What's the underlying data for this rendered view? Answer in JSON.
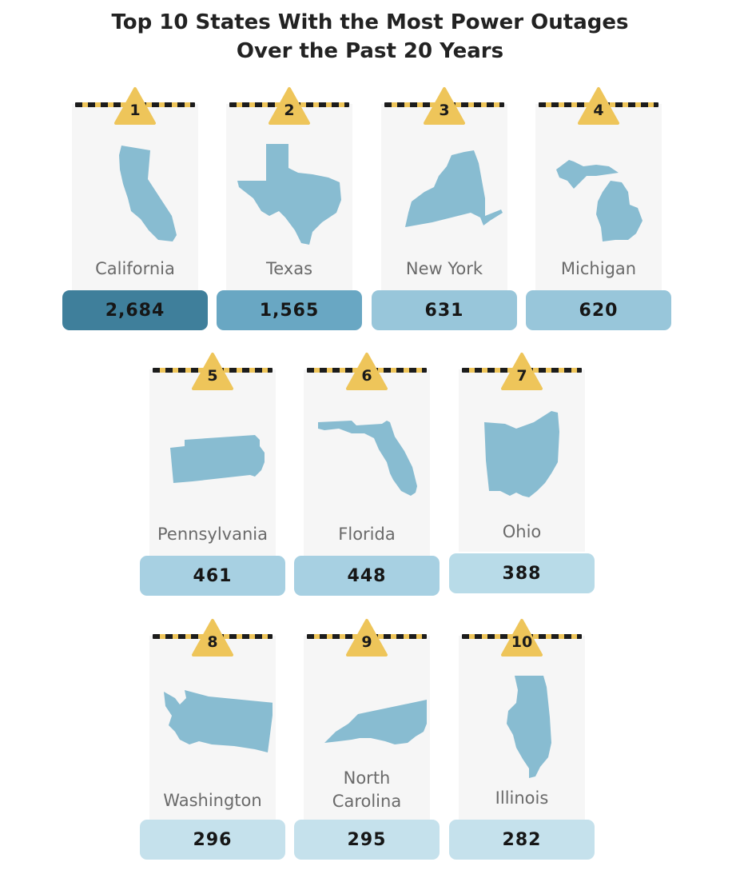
{
  "title_line1": "Top 10 States With the Most Power Outages",
  "title_line2": "Over the Past 20 Years",
  "colors": {
    "bar_level_1": "#3f7f9b",
    "bar_level_2": "#69a7c3",
    "bar_level_3": "#98c6da",
    "bar_level_4": "#a7d0e2",
    "bar_level_5": "#b8dbe8",
    "bar_level_6": "#c5e1ec",
    "map_fill": "#88bcd1",
    "sign": "#eec55a"
  },
  "chart_data": {
    "type": "table",
    "columns": [
      "rank",
      "state",
      "outages"
    ],
    "rows": [
      {
        "rank": "1",
        "state": "California",
        "value": 2684,
        "value_label": "2,684",
        "state_icon": "california-icon"
      },
      {
        "rank": "2",
        "state": "Texas",
        "value": 1565,
        "value_label": "1,565",
        "state_icon": "texas-icon"
      },
      {
        "rank": "3",
        "state": "New York",
        "value": 631,
        "value_label": "631",
        "state_icon": "new-york-icon"
      },
      {
        "rank": "4",
        "state": "Michigan",
        "value": 620,
        "value_label": "620",
        "state_icon": "michigan-icon"
      },
      {
        "rank": "5",
        "state": "Pennsylvania",
        "value": 461,
        "value_label": "461",
        "state_icon": "pennsylvania-icon"
      },
      {
        "rank": "6",
        "state": "Florida",
        "value": 448,
        "value_label": "448",
        "state_icon": "florida-icon"
      },
      {
        "rank": "7",
        "state": "Ohio",
        "value": 388,
        "value_label": "388",
        "state_icon": "ohio-icon"
      },
      {
        "rank": "8",
        "state": "Washington",
        "value": 296,
        "value_label": "296",
        "state_icon": "washington-icon"
      },
      {
        "rank": "9",
        "state": "North Carolina",
        "state_line1": "North",
        "state_line2": "Carolina",
        "value": 295,
        "value_label": "295",
        "state_icon": "north-carolina-icon"
      },
      {
        "rank": "10",
        "state": "Illinois",
        "value": 282,
        "value_label": "282",
        "state_icon": "illinois-icon"
      }
    ]
  }
}
